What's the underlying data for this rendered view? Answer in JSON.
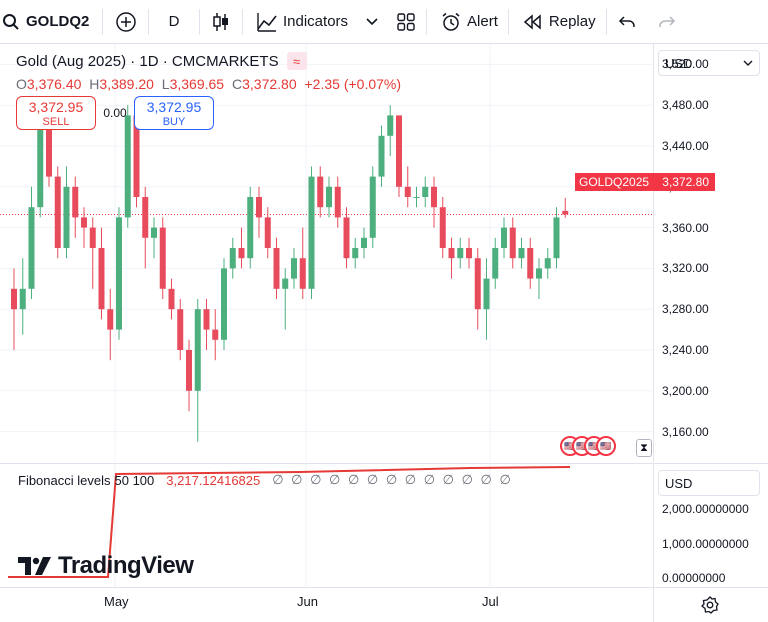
{
  "toolbar": {
    "symbol": "GOLDQ2",
    "interval": "D",
    "indicators_label": "Indicators",
    "alert_label": "Alert",
    "replay_label": "Replay"
  },
  "legend": {
    "title": "Gold (Aug 2025) · 1D · CMCMARKETS",
    "o_key": "O",
    "o_val": "3,376.40",
    "h_key": "H",
    "h_val": "3,389.20",
    "l_key": "L",
    "l_val": "3,369.65",
    "c_key": "C",
    "c_val": "3,372.80",
    "change": "+2.35 (+0.07%)"
  },
  "trade": {
    "sell_price": "3,372.95",
    "sell_label": "SELL",
    "spread": "0.00",
    "buy_price": "3,372.95",
    "buy_label": "BUY"
  },
  "price_scale": {
    "currency": "USD",
    "ticks": [
      "3,520.00",
      "3,480.00",
      "3,440.00",
      "3,400.00",
      "3,360.00",
      "3,320.00",
      "3,280.00",
      "3,240.00",
      "3,200.00",
      "3,160.00"
    ]
  },
  "price_tag": {
    "symbol": "GOLDQ2025",
    "price": "3,372.80"
  },
  "indicator": {
    "name": "Fibonacci levels",
    "params": "50 100",
    "value": "3,217.12416825",
    "nan_values": "∅ ∅ ∅ ∅ ∅ ∅ ∅ ∅ ∅ ∅ ∅ ∅ ∅",
    "currency": "USD",
    "ticks": [
      "2,000.00000000",
      "1,000.00000000",
      "0.00000000"
    ]
  },
  "time_axis": {
    "labels": [
      "May",
      "Jun",
      "Jul"
    ]
  },
  "brand": "TradingView",
  "colors": {
    "up": "#4caf7d",
    "down": "#e84c5c",
    "accent": "#2962ff",
    "alert_red": "#f23645"
  },
  "chart_data": {
    "type": "candlestick",
    "interval": "1D",
    "ylim": [
      3140,
      3540
    ],
    "last_price": 3372.8,
    "candles": [
      {
        "o": 3300,
        "h": 3320,
        "l": 3240,
        "c": 3280
      },
      {
        "o": 3280,
        "h": 3330,
        "l": 3255,
        "c": 3300
      },
      {
        "o": 3300,
        "h": 3400,
        "l": 3290,
        "c": 3380
      },
      {
        "o": 3380,
        "h": 3470,
        "l": 3370,
        "c": 3460
      },
      {
        "o": 3460,
        "h": 3470,
        "l": 3400,
        "c": 3410
      },
      {
        "o": 3410,
        "h": 3420,
        "l": 3330,
        "c": 3340
      },
      {
        "o": 3340,
        "h": 3420,
        "l": 3330,
        "c": 3400
      },
      {
        "o": 3400,
        "h": 3410,
        "l": 3350,
        "c": 3370
      },
      {
        "o": 3370,
        "h": 3380,
        "l": 3340,
        "c": 3360
      },
      {
        "o": 3360,
        "h": 3370,
        "l": 3300,
        "c": 3340
      },
      {
        "o": 3340,
        "h": 3360,
        "l": 3270,
        "c": 3280
      },
      {
        "o": 3280,
        "h": 3300,
        "l": 3230,
        "c": 3260
      },
      {
        "o": 3260,
        "h": 3380,
        "l": 3250,
        "c": 3370
      },
      {
        "o": 3370,
        "h": 3480,
        "l": 3360,
        "c": 3470
      },
      {
        "o": 3470,
        "h": 3480,
        "l": 3380,
        "c": 3390
      },
      {
        "o": 3390,
        "h": 3400,
        "l": 3320,
        "c": 3350
      },
      {
        "o": 3350,
        "h": 3370,
        "l": 3330,
        "c": 3360
      },
      {
        "o": 3360,
        "h": 3370,
        "l": 3290,
        "c": 3300
      },
      {
        "o": 3300,
        "h": 3310,
        "l": 3270,
        "c": 3280
      },
      {
        "o": 3280,
        "h": 3290,
        "l": 3230,
        "c": 3240
      },
      {
        "o": 3240,
        "h": 3250,
        "l": 3180,
        "c": 3200
      },
      {
        "o": 3200,
        "h": 3290,
        "l": 3150,
        "c": 3280
      },
      {
        "o": 3280,
        "h": 3290,
        "l": 3240,
        "c": 3260
      },
      {
        "o": 3260,
        "h": 3280,
        "l": 3230,
        "c": 3250
      },
      {
        "o": 3250,
        "h": 3330,
        "l": 3240,
        "c": 3320
      },
      {
        "o": 3320,
        "h": 3350,
        "l": 3310,
        "c": 3340
      },
      {
        "o": 3340,
        "h": 3360,
        "l": 3320,
        "c": 3330
      },
      {
        "o": 3330,
        "h": 3400,
        "l": 3320,
        "c": 3390
      },
      {
        "o": 3390,
        "h": 3400,
        "l": 3350,
        "c": 3370
      },
      {
        "o": 3370,
        "h": 3380,
        "l": 3330,
        "c": 3340
      },
      {
        "o": 3340,
        "h": 3350,
        "l": 3290,
        "c": 3300
      },
      {
        "o": 3300,
        "h": 3320,
        "l": 3260,
        "c": 3310
      },
      {
        "o": 3310,
        "h": 3340,
        "l": 3300,
        "c": 3330
      },
      {
        "o": 3330,
        "h": 3360,
        "l": 3290,
        "c": 3300
      },
      {
        "o": 3300,
        "h": 3420,
        "l": 3290,
        "c": 3410
      },
      {
        "o": 3410,
        "h": 3420,
        "l": 3370,
        "c": 3380
      },
      {
        "o": 3380,
        "h": 3410,
        "l": 3370,
        "c": 3400
      },
      {
        "o": 3400,
        "h": 3410,
        "l": 3360,
        "c": 3370
      },
      {
        "o": 3370,
        "h": 3380,
        "l": 3320,
        "c": 3330
      },
      {
        "o": 3330,
        "h": 3350,
        "l": 3320,
        "c": 3340
      },
      {
        "o": 3340,
        "h": 3360,
        "l": 3330,
        "c": 3350
      },
      {
        "o": 3350,
        "h": 3420,
        "l": 3340,
        "c": 3410
      },
      {
        "o": 3410,
        "h": 3460,
        "l": 3400,
        "c": 3450
      },
      {
        "o": 3450,
        "h": 3480,
        "l": 3430,
        "c": 3470
      },
      {
        "o": 3470,
        "h": 3470,
        "l": 3390,
        "c": 3400
      },
      {
        "o": 3400,
        "h": 3420,
        "l": 3380,
        "c": 3390
      },
      {
        "o": 3390,
        "h": 3400,
        "l": 3380,
        "c": 3390
      },
      {
        "o": 3390,
        "h": 3410,
        "l": 3380,
        "c": 3400
      },
      {
        "o": 3400,
        "h": 3410,
        "l": 3360,
        "c": 3380
      },
      {
        "o": 3380,
        "h": 3390,
        "l": 3330,
        "c": 3340
      },
      {
        "o": 3340,
        "h": 3350,
        "l": 3310,
        "c": 3330
      },
      {
        "o": 3330,
        "h": 3350,
        "l": 3320,
        "c": 3340
      },
      {
        "o": 3340,
        "h": 3350,
        "l": 3320,
        "c": 3330
      },
      {
        "o": 3330,
        "h": 3340,
        "l": 3260,
        "c": 3280
      },
      {
        "o": 3280,
        "h": 3330,
        "l": 3250,
        "c": 3310
      },
      {
        "o": 3310,
        "h": 3350,
        "l": 3300,
        "c": 3340
      },
      {
        "o": 3340,
        "h": 3370,
        "l": 3330,
        "c": 3360
      },
      {
        "o": 3360,
        "h": 3370,
        "l": 3320,
        "c": 3330
      },
      {
        "o": 3330,
        "h": 3350,
        "l": 3320,
        "c": 3340
      },
      {
        "o": 3340,
        "h": 3350,
        "l": 3300,
        "c": 3310
      },
      {
        "o": 3310,
        "h": 3330,
        "l": 3290,
        "c": 3320
      },
      {
        "o": 3320,
        "h": 3340,
        "l": 3310,
        "c": 3330
      },
      {
        "o": 3330,
        "h": 3380,
        "l": 3320,
        "c": 3370
      },
      {
        "o": 3376.4,
        "h": 3389.2,
        "l": 3369.65,
        "c": 3372.8
      }
    ]
  }
}
